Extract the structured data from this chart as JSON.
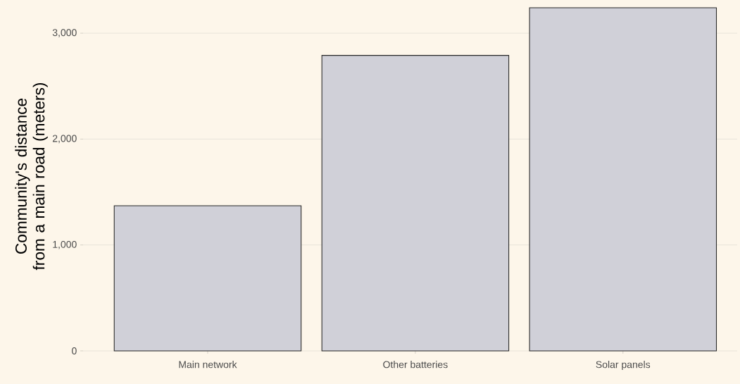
{
  "chart_data": {
    "type": "bar",
    "ylabel": "Community's distance from a main road (meters)",
    "categories": [
      "Main network",
      "Other batteries",
      "Solar panels"
    ],
    "values": [
      1370,
      2790,
      3240
    ],
    "color": "#d0d0d8",
    "ylim": [
      0,
      3300
    ],
    "yticks": [
      {
        "value": 0,
        "label": "0"
      },
      {
        "value": 1000,
        "label": "1,000"
      },
      {
        "value": 2000,
        "label": "2,000"
      },
      {
        "value": 3000,
        "label": "3,000"
      }
    ],
    "grid": "y"
  }
}
